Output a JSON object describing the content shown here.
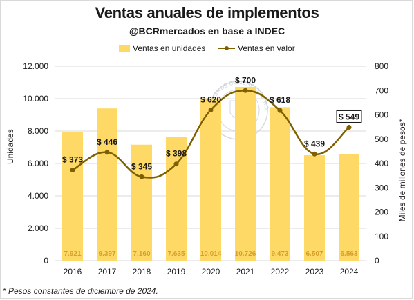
{
  "title": "Ventas anuales de implementos",
  "subtitle": "@BCRmercados en base a INDEC",
  "footnote": "* Pesos constantes de diciembre de 2024.",
  "watermark_text": "BOLSA DE COMERCIO DE ROSARIO",
  "chart_data": {
    "type": "bar",
    "categories": [
      "2016",
      "2017",
      "2018",
      "2019",
      "2020",
      "2021",
      "2022",
      "2023",
      "2024"
    ],
    "series": [
      {
        "name": "Ventas en unidades",
        "type": "bar",
        "axis": "left",
        "color": "#FFD966",
        "values": [
          7921,
          9397,
          7160,
          7635,
          10014,
          10726,
          9473,
          6507,
          6563
        ],
        "labels": [
          "7.921",
          "9.397",
          "7.160",
          "7.635",
          "10.014",
          "10.726",
          "9.473",
          "6.507",
          "6.563"
        ]
      },
      {
        "name": "Ventas en valor",
        "type": "line",
        "axis": "right",
        "color": "#7F6000",
        "values": [
          373,
          446,
          345,
          398,
          620,
          700,
          618,
          439,
          549
        ],
        "labels": [
          "$ 373",
          "$ 446",
          "$ 345",
          "$ 398",
          "$ 620",
          "$ 700",
          "$ 618",
          "$ 439",
          "$ 549"
        ]
      }
    ],
    "ylabel": "Unidades",
    "ylabel_right": "Miles de millones de pesos*",
    "ylim": [
      0,
      12000
    ],
    "yticks": [
      "0",
      "2.000",
      "4.000",
      "6.000",
      "8.000",
      "10.000",
      "12.000"
    ],
    "ylim_right": [
      0,
      800
    ],
    "yticks_right": [
      "0",
      "100",
      "200",
      "300",
      "400",
      "500",
      "600",
      "700",
      "800"
    ],
    "legend_position": "top",
    "grid": true,
    "highlighted_point": "2024"
  }
}
